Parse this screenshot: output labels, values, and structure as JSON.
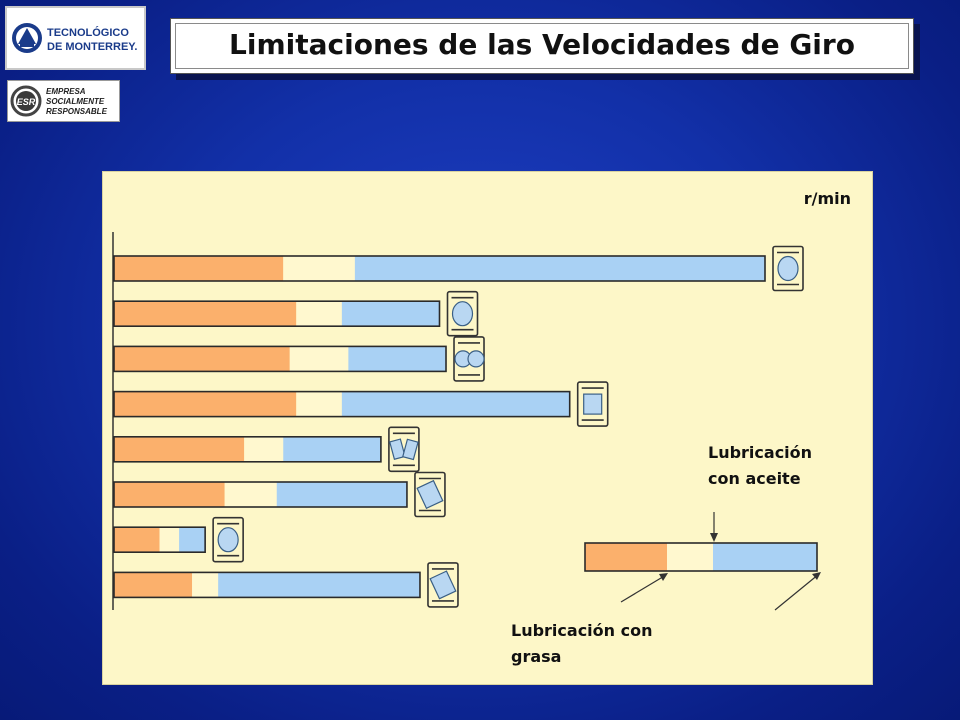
{
  "logos": {
    "institution_lines": [
      "TECNOLÓGICO",
      "DE MONTERREY."
    ],
    "esr_badge": "ESR",
    "esr_lines": [
      "EMPRESA",
      "SOCIALMENTE",
      "RESPONSABLE"
    ]
  },
  "slide": {
    "title": "Limitaciones de las Velocidades de Giro"
  },
  "colors": {
    "grease": "#fbb06c",
    "oil": "#a9d1f4",
    "gap": "#fff8cf",
    "panel": "#fdf7c8",
    "bearing_fill": "#b9d7f2"
  },
  "chart_data": {
    "type": "bar",
    "orientation": "horizontal",
    "unit_label": "r/min",
    "xlim": [
      0,
      100
    ],
    "grid": false,
    "legend": {
      "oil_label": "Lubricación con aceite",
      "grease_label": "Lubricación con grasa"
    },
    "bars": [
      {
        "bearing": "deep-groove-ball",
        "grease": 26,
        "gap": 11,
        "oil": 63
      },
      {
        "bearing": "angular-contact-ball",
        "grease": 28,
        "gap": 7,
        "oil": 15
      },
      {
        "bearing": "double-row-angular-ball",
        "grease": 27,
        "gap": 9,
        "oil": 15
      },
      {
        "bearing": "cylindrical-roller",
        "grease": 28,
        "gap": 7,
        "oil": 35
      },
      {
        "bearing": "spherical-roller",
        "grease": 20,
        "gap": 6,
        "oil": 15
      },
      {
        "bearing": "tapered-roller",
        "grease": 17,
        "gap": 8,
        "oil": 20
      },
      {
        "bearing": "self-aligning-ball",
        "grease": 7,
        "gap": 3,
        "oil": 4
      },
      {
        "bearing": "spherical-roller-thrust",
        "grease": 12,
        "gap": 4,
        "oil": 31
      }
    ]
  }
}
